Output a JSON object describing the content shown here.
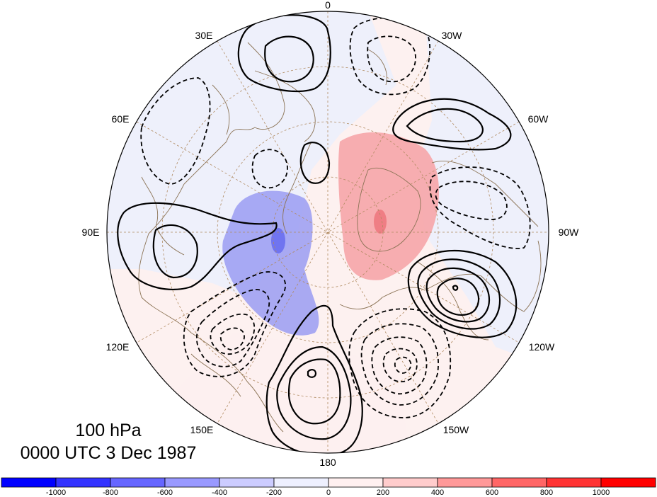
{
  "title": {
    "level": "100 hPa",
    "time": "0000 UTC 3 Dec 1987"
  },
  "longitude_labels": {
    "lon_0": "0",
    "lon_30e": "30E",
    "lon_30w": "30W",
    "lon_60e": "60E",
    "lon_60w": "60W",
    "lon_90e": "90E",
    "lon_90w": "90W",
    "lon_120e": "120E",
    "lon_120w": "120W",
    "lon_150e": "150E",
    "lon_150w": "150W",
    "lon_180": "180"
  },
  "colorbar": {
    "ticks": [
      "-1000",
      "-800",
      "-600",
      "-400",
      "-200",
      "0",
      "200",
      "400",
      "600",
      "800",
      "1000"
    ],
    "colors": [
      "#0000ff",
      "#3333ff",
      "#6666ff",
      "#9999ff",
      "#ccccff",
      "#eef0ff",
      "#fff0f0",
      "#ffcccc",
      "#ff9999",
      "#ff6666",
      "#ff3333",
      "#ff0000"
    ]
  },
  "colors": {
    "negative_shade": "#8888ff",
    "positive_shade": "#ff8888",
    "coastline": "#8b7355",
    "graticule": "#b08a60"
  }
}
